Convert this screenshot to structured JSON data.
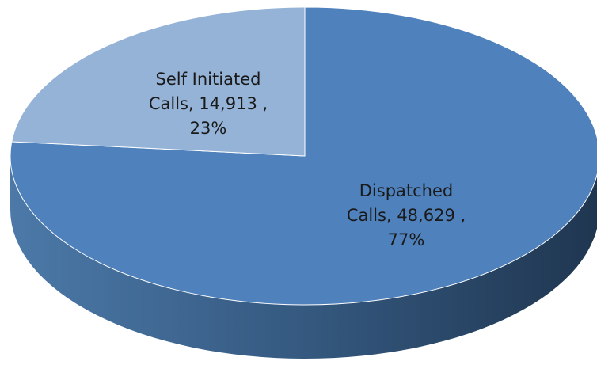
{
  "chart_data": {
    "type": "pie",
    "title": "",
    "three_d": true,
    "start_angle_deg": -90,
    "direction": "clockwise",
    "slices": [
      {
        "name": "Dispatched Calls",
        "value": 48629,
        "percent": 77,
        "color": "#4F81BD",
        "label_lines": [
          "Dispatched",
          "Calls,  48,629 ,",
          "77%"
        ]
      },
      {
        "name": "Self Initiated Calls",
        "value": 14913,
        "percent": 23,
        "color": "#95B3D7",
        "label_lines": [
          "Self Initiated",
          "Calls,  14,913 ,",
          "23%"
        ]
      }
    ]
  }
}
